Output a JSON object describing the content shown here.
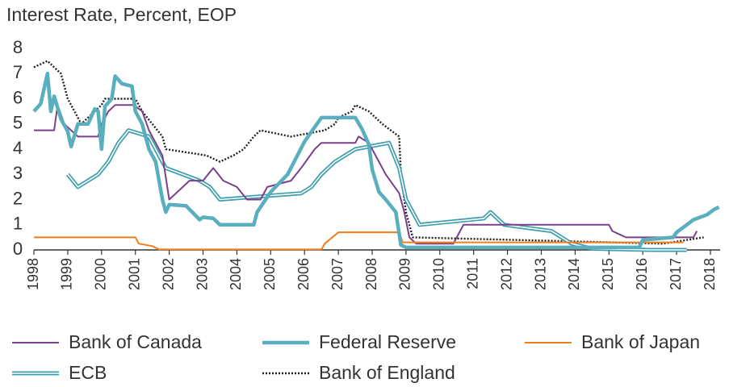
{
  "chart_data": {
    "type": "line",
    "title": "Interest Rate, Percent, EOP",
    "xlim": [
      1998,
      2018.3
    ],
    "ylim": [
      0,
      8
    ],
    "xticks": [
      1998,
      1999,
      2000,
      2001,
      2002,
      2003,
      2004,
      2005,
      2006,
      2007,
      2008,
      2009,
      2010,
      2011,
      2012,
      2013,
      2014,
      2015,
      2016,
      2017,
      2018
    ],
    "yticks": [
      0,
      1,
      2,
      3,
      4,
      5,
      6,
      7,
      8
    ],
    "grid": false,
    "series": [
      {
        "name": "Bank of Canada",
        "color": "#7b3f8c",
        "style": "thin",
        "x": [
          1998.0,
          1998.6,
          1998.7,
          1998.9,
          1999.1,
          1999.3,
          1999.9,
          2000.0,
          2000.2,
          2000.4,
          2000.95,
          2001.2,
          2001.4,
          2001.6,
          2001.8,
          2002.0,
          2002.4,
          2002.6,
          2003.0,
          2003.3,
          2003.6,
          2004.0,
          2004.3,
          2004.7,
          2004.9,
          2005.6,
          2005.9,
          2006.3,
          2006.5,
          2007.5,
          2007.6,
          2007.9,
          2008.2,
          2008.4,
          2008.8,
          2008.95,
          2009.1,
          2009.3,
          2010.4,
          2010.5,
          2010.6,
          2010.7,
          2015.0,
          2015.1,
          2015.5,
          2017.5,
          2017.6
        ],
        "values": [
          4.75,
          4.75,
          5.75,
          5.0,
          4.75,
          4.5,
          4.5,
          5.0,
          5.5,
          5.75,
          5.75,
          5.5,
          4.75,
          4.25,
          3.75,
          2.0,
          2.5,
          2.75,
          2.75,
          3.25,
          2.75,
          2.5,
          2.0,
          2.0,
          2.5,
          2.75,
          3.25,
          4.0,
          4.25,
          4.25,
          4.5,
          4.25,
          3.5,
          3.0,
          2.25,
          1.5,
          0.5,
          0.25,
          0.25,
          0.5,
          0.75,
          1.0,
          1.0,
          0.75,
          0.5,
          0.5,
          0.75
        ]
      },
      {
        "name": "Federal Reserve",
        "color": "#5aafbf",
        "style": "thick",
        "x": [
          1998.0,
          1998.2,
          1998.4,
          1998.5,
          1998.6,
          1998.8,
          1999.0,
          1999.1,
          1999.3,
          1999.6,
          1999.8,
          1999.9,
          2000.0,
          2000.1,
          2000.3,
          2000.4,
          2000.6,
          2000.9,
          2001.0,
          2001.2,
          2001.4,
          2001.6,
          2001.8,
          2001.9,
          2002.0,
          2002.5,
          2002.9,
          2003.0,
          2003.3,
          2003.5,
          2004.5,
          2004.6,
          2005.0,
          2005.5,
          2006.0,
          2006.5,
          2007.5,
          2007.7,
          2007.9,
          2008.0,
          2008.2,
          2008.4,
          2008.7,
          2008.85,
          2009.0,
          2015.9,
          2016.0,
          2016.9,
          2017.0,
          2017.3,
          2017.5,
          2017.9,
          2018.1,
          2018.25
        ],
        "values": [
          5.5,
          5.8,
          7.0,
          5.5,
          6.1,
          5.2,
          4.7,
          4.1,
          5.0,
          5.0,
          5.6,
          5.5,
          4.0,
          5.7,
          6.0,
          6.9,
          6.6,
          6.5,
          5.5,
          5.0,
          4.0,
          3.5,
          2.0,
          1.5,
          1.8,
          1.75,
          1.2,
          1.3,
          1.25,
          1.0,
          1.0,
          1.5,
          2.3,
          3.0,
          4.3,
          5.25,
          5.25,
          4.8,
          4.2,
          3.2,
          2.3,
          2.0,
          1.5,
          0.2,
          0.1,
          0.1,
          0.4,
          0.5,
          0.7,
          1.0,
          1.2,
          1.4,
          1.6,
          1.7
        ]
      },
      {
        "name": "Bank of Japan",
        "color": "#f07d1a",
        "style": "thin",
        "x": [
          1998.0,
          2001.0,
          2001.1,
          2001.5,
          2001.7,
          2006.5,
          2006.6,
          2007.0,
          2008.8,
          2008.9,
          2017.2
        ],
        "values": [
          0.5,
          0.5,
          0.25,
          0.15,
          0.02,
          0.02,
          0.25,
          0.7,
          0.7,
          0.3,
          0.3
        ]
      },
      {
        "name": "ECB",
        "color": "#3f9eae",
        "style": "double",
        "x": [
          1999.0,
          1999.3,
          1999.9,
          2000.2,
          2000.5,
          2000.8,
          2001.4,
          2001.7,
          2001.9,
          2002.9,
          2003.2,
          2003.5,
          2005.9,
          2006.2,
          2006.5,
          2006.9,
          2007.2,
          2007.5,
          2008.5,
          2008.8,
          2009.0,
          2009.3,
          2009.4,
          2011.3,
          2011.5,
          2011.9,
          2013.3,
          2013.9,
          2014.5,
          2016.2,
          2017.3
        ],
        "values": [
          3.0,
          2.5,
          3.0,
          3.5,
          4.25,
          4.75,
          4.5,
          3.75,
          3.25,
          2.75,
          2.5,
          2.0,
          2.25,
          2.5,
          3.0,
          3.5,
          3.75,
          4.0,
          4.25,
          3.25,
          2.0,
          1.25,
          1.0,
          1.25,
          1.5,
          1.0,
          0.75,
          0.25,
          0.05,
          0.0,
          0.0
        ]
      },
      {
        "name": "Bank of England",
        "color": "#222222",
        "style": "dotted",
        "x": [
          1998.0,
          1998.4,
          1998.8,
          1999.0,
          1999.2,
          1999.4,
          1999.6,
          2000.0,
          2000.1,
          2001.0,
          2001.2,
          2001.5,
          2001.8,
          2001.9,
          2003.1,
          2003.5,
          2003.9,
          2004.2,
          2004.5,
          2004.7,
          2005.6,
          2006.6,
          2006.9,
          2007.0,
          2007.4,
          2007.5,
          2007.9,
          2008.1,
          2008.3,
          2008.8,
          2008.85,
          2008.95,
          2009.0,
          2009.1,
          2009.2,
          2016.6,
          2017.8
        ],
        "values": [
          7.25,
          7.5,
          7.0,
          6.0,
          5.5,
          5.0,
          5.25,
          5.75,
          6.0,
          6.0,
          5.5,
          5.0,
          4.5,
          4.0,
          3.75,
          3.5,
          3.75,
          4.0,
          4.5,
          4.75,
          4.5,
          4.75,
          5.0,
          5.25,
          5.5,
          5.75,
          5.5,
          5.25,
          5.0,
          4.5,
          3.0,
          2.0,
          1.5,
          1.0,
          0.5,
          0.25,
          0.5
        ]
      }
    ]
  }
}
